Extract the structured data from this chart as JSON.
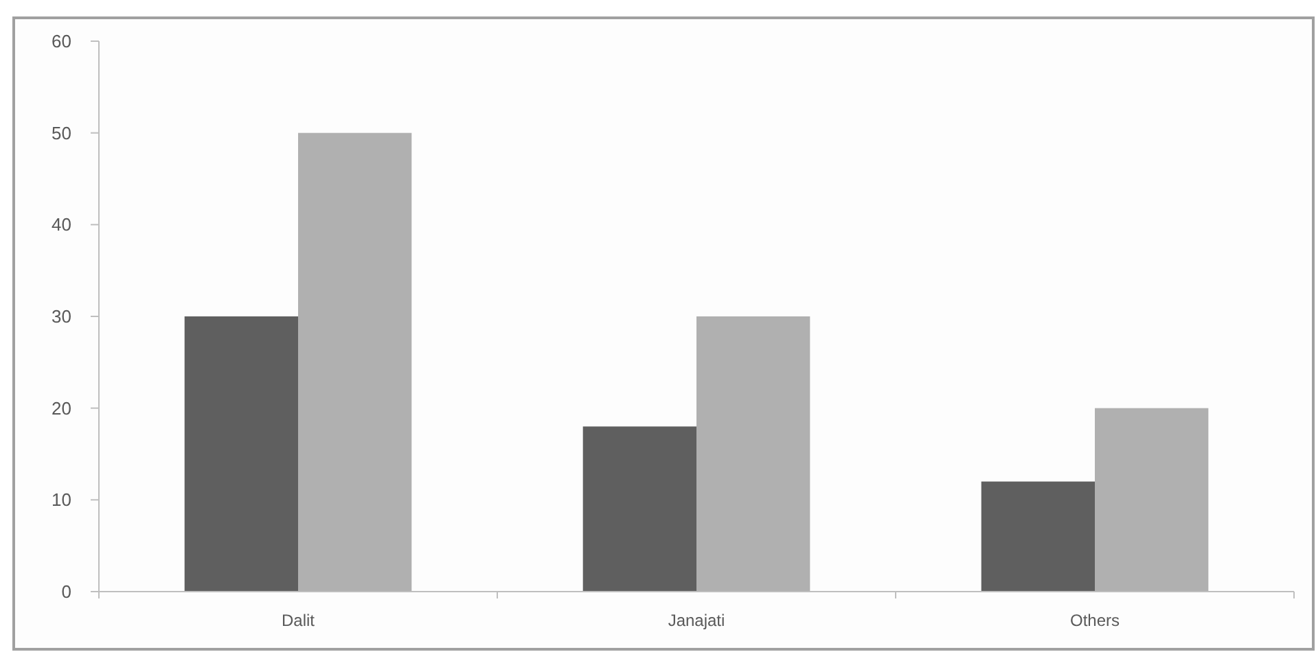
{
  "chart_data": {
    "type": "bar",
    "categories": [
      "Dalit",
      "Janajati",
      "Others"
    ],
    "series": [
      {
        "color": "#5f5f5f",
        "values": [
          30,
          18,
          12
        ]
      },
      {
        "color": "#b0b0b0",
        "values": [
          50,
          30,
          20
        ]
      }
    ],
    "ylim": [
      0,
      60
    ],
    "yticks": [
      0,
      10,
      20,
      30,
      40,
      50,
      60
    ]
  }
}
